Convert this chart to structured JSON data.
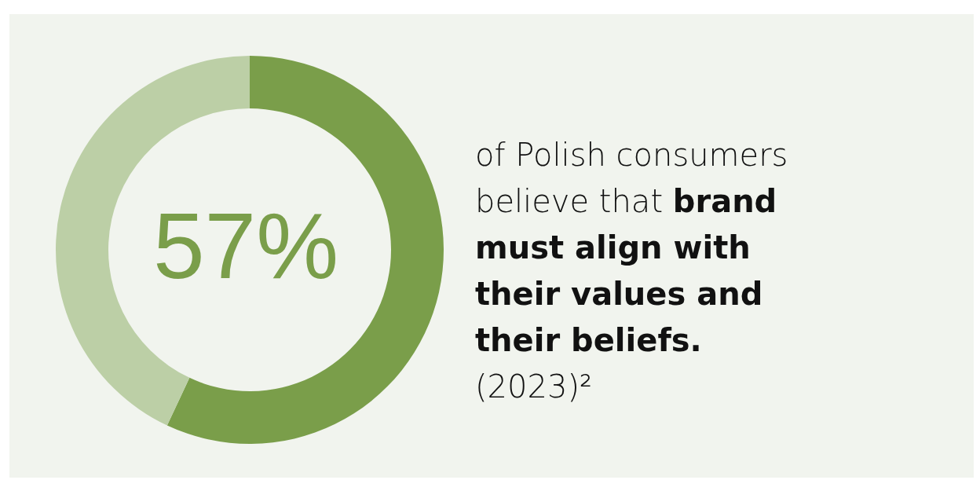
{
  "chart_data": {
    "type": "donut",
    "categories": [
      null,
      null
    ],
    "values": [
      57,
      43
    ],
    "colors": [
      "#7a9e4a",
      "#bccfa6"
    ],
    "annotations": [
      "57%",
      "of Polish consumers believe that",
      "brand must align with their values and their beliefs.",
      "(2023)²"
    ]
  }
}
